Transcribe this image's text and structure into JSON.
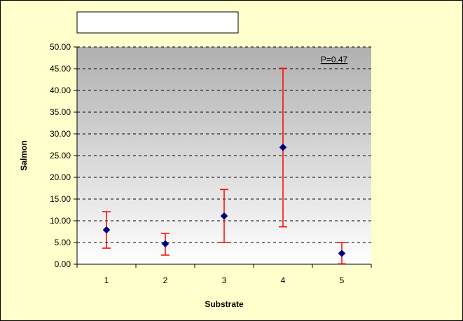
{
  "chart_data": {
    "type": "scatter",
    "title": "",
    "xlabel": "Substrate",
    "ylabel": "Salmon",
    "annotation": "P=0.47",
    "categories": [
      "1",
      "2",
      "3",
      "4",
      "5"
    ],
    "x": [
      1,
      2,
      3,
      4,
      5
    ],
    "values": [
      7.9,
      4.7,
      11.1,
      26.9,
      2.5
    ],
    "error_upper": [
      12.1,
      7.1,
      17.2,
      45.1,
      5.0
    ],
    "error_lower": [
      3.7,
      2.1,
      5.0,
      8.6,
      0.1
    ],
    "yticks": [
      "0.00",
      "5.00",
      "10.00",
      "15.00",
      "20.00",
      "25.00",
      "30.00",
      "35.00",
      "40.00",
      "45.00",
      "50.00"
    ],
    "ylim": [
      0,
      50
    ],
    "grid": true,
    "colors": {
      "background": "#FFFFCC",
      "border": "#000000",
      "plot_top": "#B0B0B0",
      "plot_bottom": "#FFFFFF",
      "marker": "#000080",
      "error_bar": "#FF0000"
    }
  }
}
